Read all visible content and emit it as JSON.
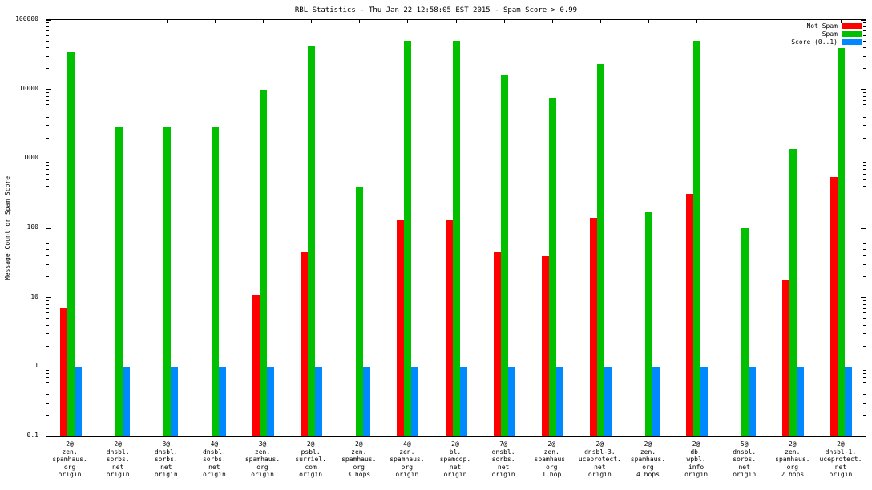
{
  "title": "RBL Statistics - Thu Jan 22 12:58:05 EST 2015 - Spam Score > 0.99",
  "ylabel": "Message Count or Spam Score",
  "legend": [
    {
      "label": "Not Spam",
      "color": "#ff0000"
    },
    {
      "label": "Spam",
      "color": "#00c000"
    },
    {
      "label": "Score (0..1)",
      "color": "#0088ff"
    }
  ],
  "chart_data": {
    "type": "bar",
    "scale": "log",
    "title": "RBL Statistics - Thu Jan 22 12:58:05 EST 2015 - Spam Score > 0.99",
    "xlabel": "",
    "ylabel": "Message Count or Spam Score",
    "ylim": [
      0.1,
      100000
    ],
    "yticks": [
      0.1,
      1,
      10,
      100,
      1000,
      10000,
      100000
    ],
    "ytick_labels": [
      "0.1",
      "1",
      "10",
      "100",
      "1000",
      "10000",
      "100000"
    ],
    "grid": false,
    "legend_position": "top-right",
    "categories": [
      [
        "2@",
        "zen.",
        "spamhaus.",
        "org",
        "origin"
      ],
      [
        "2@",
        "dnsbl.",
        "sorbs.",
        "net",
        "origin"
      ],
      [
        "3@",
        "dnsbl.",
        "sorbs.",
        "net",
        "origin"
      ],
      [
        "4@",
        "dnsbl.",
        "sorbs.",
        "net",
        "origin"
      ],
      [
        "3@",
        "zen.",
        "spamhaus.",
        "org",
        "origin"
      ],
      [
        "2@",
        "psbl.",
        "surriel.",
        "com",
        "origin"
      ],
      [
        "2@",
        "zen.",
        "spamhaus.",
        "org",
        "3 hops"
      ],
      [
        "4@",
        "zen.",
        "spamhaus.",
        "org",
        "origin"
      ],
      [
        "2@",
        "bl.",
        "spamcop.",
        "net",
        "origin"
      ],
      [
        "7@",
        "dnsbl.",
        "sorbs.",
        "net",
        "origin"
      ],
      [
        "2@",
        "zen.",
        "spamhaus.",
        "org",
        "1 hop"
      ],
      [
        "2@",
        "dnsbl-3.",
        "uceprotect.",
        "net",
        "origin"
      ],
      [
        "2@",
        "zen.",
        "spamhaus.",
        "org",
        "4 hops"
      ],
      [
        "2@",
        "db.",
        "wpbl.",
        "info",
        "origin"
      ],
      [
        "5@",
        "dnsbl.",
        "sorbs.",
        "net",
        "origin"
      ],
      [
        "2@",
        "zen.",
        "spamhaus.",
        "org",
        "2 hops"
      ],
      [
        "2@",
        "dnsbl-1.",
        "uceprotect.",
        "net",
        "origin"
      ]
    ],
    "series": [
      {
        "name": "Not Spam",
        "color": "#ff0000",
        "values": [
          7,
          null,
          null,
          null,
          11,
          45,
          null,
          130,
          130,
          45,
          40,
          140,
          null,
          310,
          null,
          18,
          550
        ]
      },
      {
        "name": "Spam",
        "color": "#00c000",
        "values": [
          35000,
          2900,
          2900,
          2900,
          10000,
          42000,
          400,
          50000,
          50000,
          16000,
          7500,
          23000,
          170,
          50000,
          100,
          1400,
          40000
        ]
      },
      {
        "name": "Score (0..1)",
        "color": "#0088ff",
        "values": [
          1,
          1,
          1,
          1,
          1,
          1,
          1,
          1,
          1,
          1,
          1,
          1,
          1,
          1,
          1,
          1,
          1
        ]
      }
    ]
  }
}
